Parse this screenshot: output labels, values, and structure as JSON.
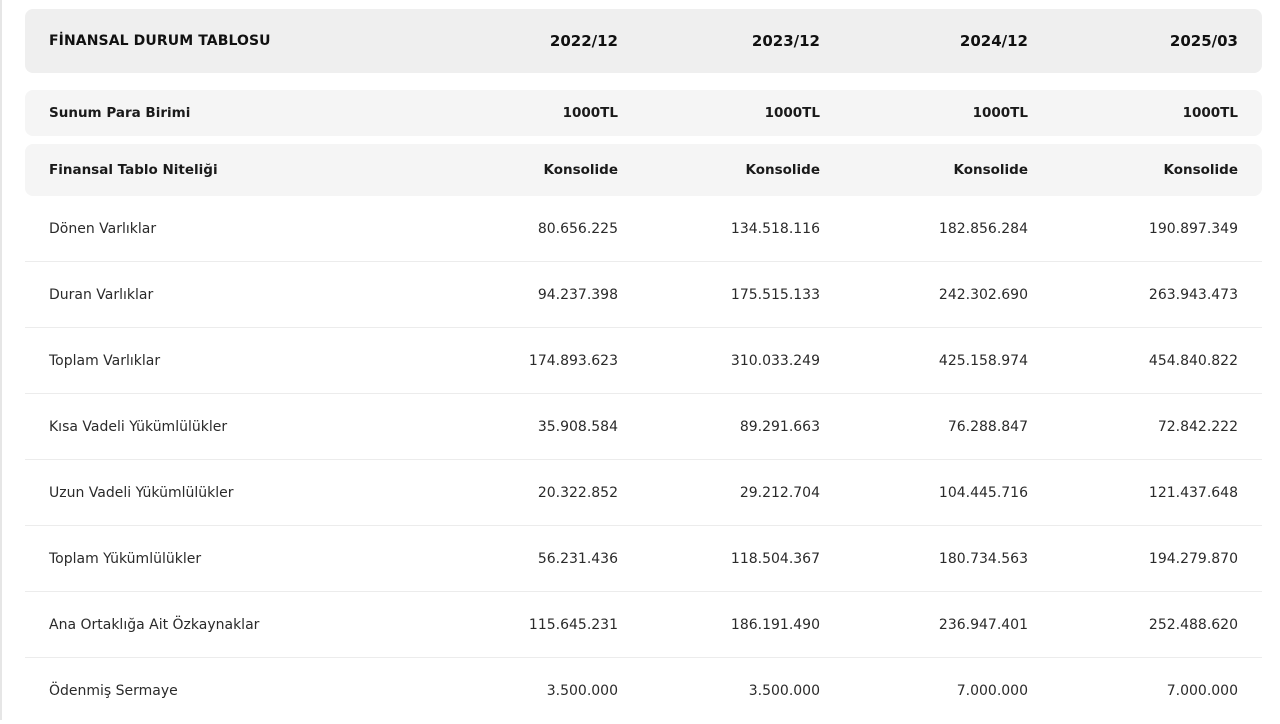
{
  "header": {
    "title": "FİNANSAL DURUM TABLOSU",
    "periods": [
      "2022/12",
      "2023/12",
      "2024/12",
      "2025/03"
    ]
  },
  "meta": [
    {
      "label": "Sunum Para Birimi",
      "values": [
        "1000TL",
        "1000TL",
        "1000TL",
        "1000TL"
      ]
    },
    {
      "label": "Finansal Tablo Niteliği",
      "values": [
        "Konsolide",
        "Konsolide",
        "Konsolide",
        "Konsolide"
      ]
    }
  ],
  "rows": [
    {
      "label": "Dönen Varlıklar",
      "values": [
        "80.656.225",
        "134.518.116",
        "182.856.284",
        "190.897.349"
      ]
    },
    {
      "label": "Duran Varlıklar",
      "values": [
        "94.237.398",
        "175.515.133",
        "242.302.690",
        "263.943.473"
      ]
    },
    {
      "label": "Toplam Varlıklar",
      "values": [
        "174.893.623",
        "310.033.249",
        "425.158.974",
        "454.840.822"
      ]
    },
    {
      "label": "Kısa Vadeli Yükümlülükler",
      "values": [
        "35.908.584",
        "89.291.663",
        "76.288.847",
        "72.842.222"
      ]
    },
    {
      "label": "Uzun Vadeli Yükümlülükler",
      "values": [
        "20.322.852",
        "29.212.704",
        "104.445.716",
        "121.437.648"
      ]
    },
    {
      "label": "Toplam Yükümlülükler",
      "values": [
        "56.231.436",
        "118.504.367",
        "180.734.563",
        "194.279.870"
      ]
    },
    {
      "label": "Ana Ortaklığa Ait Özkaynaklar",
      "values": [
        "115.645.231",
        "186.191.490",
        "236.947.401",
        "252.488.620"
      ]
    },
    {
      "label": "Ödenmiş Sermaye",
      "values": [
        "3.500.000",
        "3.500.000",
        "7.000.000",
        "7.000.000"
      ]
    }
  ]
}
